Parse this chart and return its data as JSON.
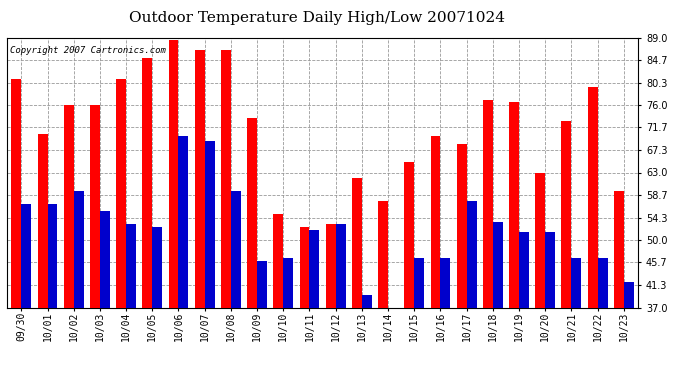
{
  "title": "Outdoor Temperature Daily High/Low 20071024",
  "copyright": "Copyright 2007 Cartronics.com",
  "labels": [
    "09/30",
    "10/01",
    "10/02",
    "10/03",
    "10/04",
    "10/05",
    "10/06",
    "10/07",
    "10/08",
    "10/09",
    "10/10",
    "10/11",
    "10/12",
    "10/13",
    "10/14",
    "10/15",
    "10/16",
    "10/17",
    "10/18",
    "10/19",
    "10/20",
    "10/21",
    "10/22",
    "10/23"
  ],
  "highs": [
    81.0,
    70.5,
    76.0,
    76.0,
    81.0,
    85.0,
    88.5,
    86.5,
    86.5,
    73.5,
    55.0,
    52.5,
    53.0,
    62.0,
    57.5,
    65.0,
    70.0,
    68.5,
    77.0,
    76.5,
    63.0,
    73.0,
    79.5,
    59.5
  ],
  "lows": [
    57.0,
    57.0,
    59.5,
    55.5,
    53.0,
    52.5,
    70.0,
    69.0,
    59.5,
    46.0,
    46.5,
    52.0,
    53.0,
    39.5,
    37.0,
    46.5,
    46.5,
    57.5,
    53.5,
    51.5,
    51.5,
    46.5,
    46.5,
    42.0
  ],
  "ymin": 37.0,
  "ymax": 89.0,
  "yticks": [
    37.0,
    41.3,
    45.7,
    50.0,
    54.3,
    58.7,
    63.0,
    67.3,
    71.7,
    76.0,
    80.3,
    84.7,
    89.0
  ],
  "high_color": "#ff0000",
  "low_color": "#0000cc",
  "bg_color": "#ffffff",
  "grid_color": "#999999",
  "title_fontsize": 11,
  "tick_fontsize": 7,
  "copyright_fontsize": 6.5
}
